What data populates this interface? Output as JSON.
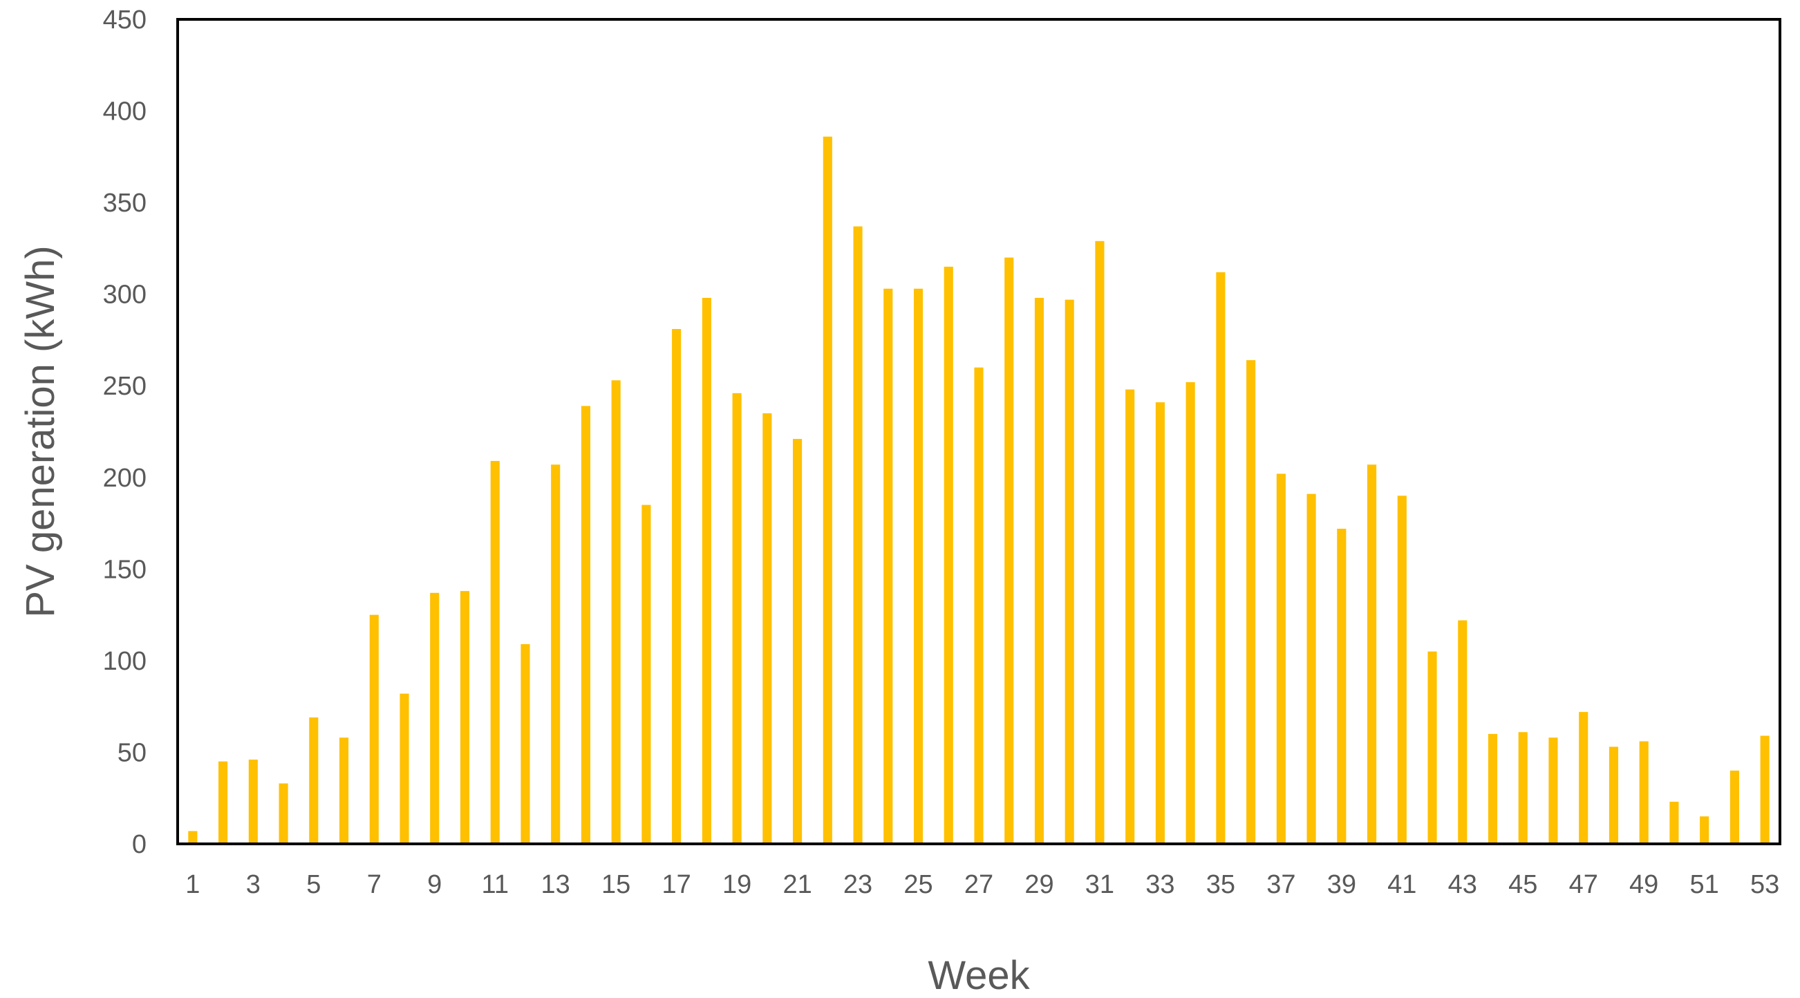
{
  "chart_data": {
    "type": "bar",
    "title": "",
    "xlabel": "Week",
    "ylabel": "PV generation (kWh)",
    "ylim": [
      0,
      450
    ],
    "yticks": [
      0,
      50,
      100,
      150,
      200,
      250,
      300,
      350,
      400,
      450
    ],
    "xtick_labels": [
      "1",
      "3",
      "5",
      "7",
      "9",
      "11",
      "13",
      "15",
      "17",
      "19",
      "21",
      "23",
      "25",
      "27",
      "29",
      "31",
      "33",
      "35",
      "37",
      "39",
      "41",
      "43",
      "45",
      "47",
      "49",
      "51",
      "53"
    ],
    "categories": [
      1,
      2,
      3,
      4,
      5,
      6,
      7,
      8,
      9,
      10,
      11,
      12,
      13,
      14,
      15,
      16,
      17,
      18,
      19,
      20,
      21,
      22,
      23,
      24,
      25,
      26,
      27,
      28,
      29,
      30,
      31,
      32,
      33,
      34,
      35,
      36,
      37,
      38,
      39,
      40,
      41,
      42,
      43,
      44,
      45,
      46,
      47,
      48,
      49,
      50,
      51,
      52,
      53
    ],
    "values": [
      7,
      45,
      46,
      33,
      69,
      58,
      125,
      82,
      137,
      138,
      209,
      109,
      207,
      239,
      253,
      185,
      281,
      298,
      246,
      235,
      221,
      386,
      337,
      303,
      303,
      315,
      260,
      320,
      298,
      297,
      329,
      248,
      241,
      252,
      312,
      264,
      202,
      191,
      172,
      207,
      190,
      105,
      122,
      60,
      61,
      58,
      72,
      53,
      56,
      23,
      15,
      40,
      59
    ],
    "grid": false,
    "legend": "none",
    "colors": {
      "bar": "#FFC000",
      "axis": "#000000",
      "text": "#595959"
    }
  }
}
